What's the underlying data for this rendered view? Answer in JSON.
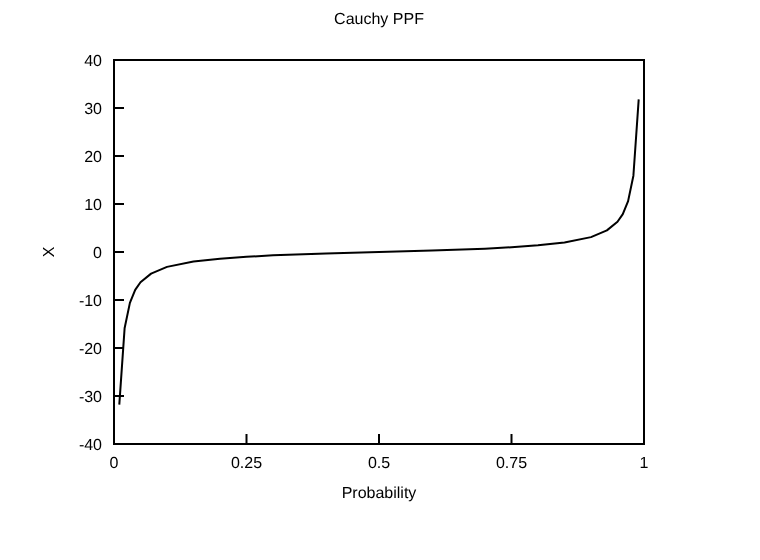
{
  "chart_data": {
    "type": "line",
    "title": "Cauchy PPF",
    "xlabel": "Probability",
    "ylabel": "X",
    "x": [
      0.01,
      0.02,
      0.03,
      0.04,
      0.05,
      0.07,
      0.1,
      0.15,
      0.2,
      0.25,
      0.3,
      0.4,
      0.5,
      0.6,
      0.7,
      0.75,
      0.8,
      0.85,
      0.9,
      0.93,
      0.95,
      0.96,
      0.97,
      0.98,
      0.99
    ],
    "series": [
      {
        "color": "#000000",
        "values": [
          -31.8,
          -15.9,
          -10.6,
          -7.9,
          -6.3,
          -4.5,
          -3.1,
          -2,
          -1.4,
          -1,
          -0.7,
          -0.3,
          0,
          0.3,
          0.7,
          1,
          1.4,
          2,
          3.1,
          4.5,
          6.3,
          7.9,
          10.6,
          15.9,
          31.8
        ]
      }
    ],
    "xlim": [
      0,
      1
    ],
    "xticks": [
      0,
      0.25,
      0.5,
      0.75,
      1
    ],
    "ylim": [
      -40,
      40
    ],
    "yticks": [
      -40,
      -30,
      -20,
      -10,
      0,
      10,
      20,
      30,
      40
    ],
    "marker": "none",
    "line_style": "solid"
  }
}
